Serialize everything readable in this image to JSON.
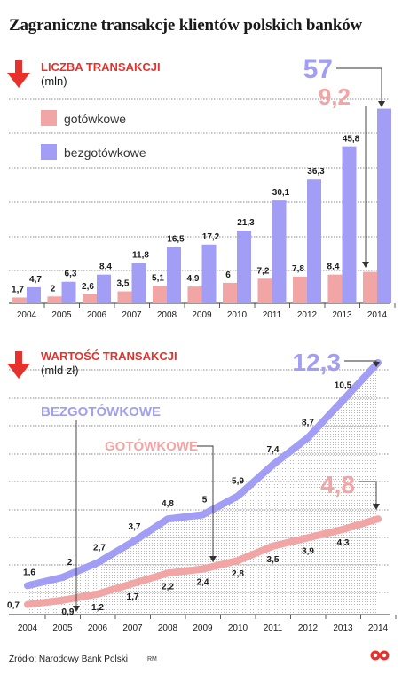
{
  "title": "Zagraniczne transakcje klientów polskich banków",
  "colors": {
    "cash": "#f2a5a5",
    "noncash": "#a29ef5",
    "accent": "#e8312a",
    "grid": "#555555"
  },
  "icons": {
    "section_arrow": "down-arrow-icon",
    "brand": "logo-icon"
  },
  "source": "Źródło: Narodowy Bank Polski",
  "author": "RM",
  "chart_data": [
    {
      "type": "bar",
      "title": "LICZBA TRANSAKCJI",
      "unit": "(mln)",
      "categories": [
        "2004",
        "2005",
        "2006",
        "2007",
        "2008",
        "2009",
        "2010",
        "2011",
        "2012",
        "2013",
        "2014"
      ],
      "series": [
        {
          "name": "gotówkowe",
          "color": "#f2a5a5",
          "values": [
            1.7,
            2,
            2.6,
            3.5,
            5.1,
            4.9,
            6,
            7.2,
            7.8,
            8.4,
            9.2
          ],
          "labels": [
            "1,7",
            "2",
            "2,6",
            "3,5",
            "5,1",
            "4,9",
            "6",
            "7,2",
            "7,8",
            "8,4",
            "9,2"
          ]
        },
        {
          "name": "bezgotówkowe",
          "color": "#a29ef5",
          "values": [
            4.7,
            6.3,
            8.4,
            11.8,
            16.5,
            17.2,
            21.3,
            30.1,
            36.3,
            45.8,
            57
          ],
          "labels": [
            "4,7",
            "6,3",
            "8,4",
            "11,8",
            "16,5",
            "17,2",
            "21,3",
            "30,1",
            "36,3",
            "45,8",
            "57"
          ]
        }
      ],
      "grid": true,
      "legend": "top-left"
    },
    {
      "type": "area",
      "title": "WARTOŚĆ TRANSAKCJI",
      "unit": "(mld zł)",
      "categories": [
        "2004",
        "2005",
        "2006",
        "2007",
        "2008",
        "2009",
        "2010",
        "2011",
        "2012",
        "2013",
        "2014"
      ],
      "series": [
        {
          "name": "BEZGOTÓWKOWE",
          "color": "#a29ef5",
          "values": [
            1.6,
            2,
            2.7,
            3.7,
            4.8,
            5,
            5.9,
            7.4,
            8.7,
            10.5,
            12.3
          ],
          "labels": [
            "1,6",
            "2",
            "2,7",
            "3,7",
            "4,8",
            "5",
            "5,9",
            "7,4",
            "8,7",
            "10,5",
            "12,3"
          ]
        },
        {
          "name": "GOTÓWKOWE",
          "color": "#f2a5a5",
          "values": [
            0.7,
            0.9,
            1.2,
            1.7,
            2.2,
            2.4,
            2.8,
            3.5,
            3.9,
            4.3,
            4.8
          ],
          "labels": [
            "0,7",
            "0,9",
            "1,2",
            "1,7",
            "2,2",
            "2,4",
            "2,8",
            "3,5",
            "3,9",
            "4,3",
            "4,8"
          ]
        }
      ],
      "grid": true
    }
  ]
}
